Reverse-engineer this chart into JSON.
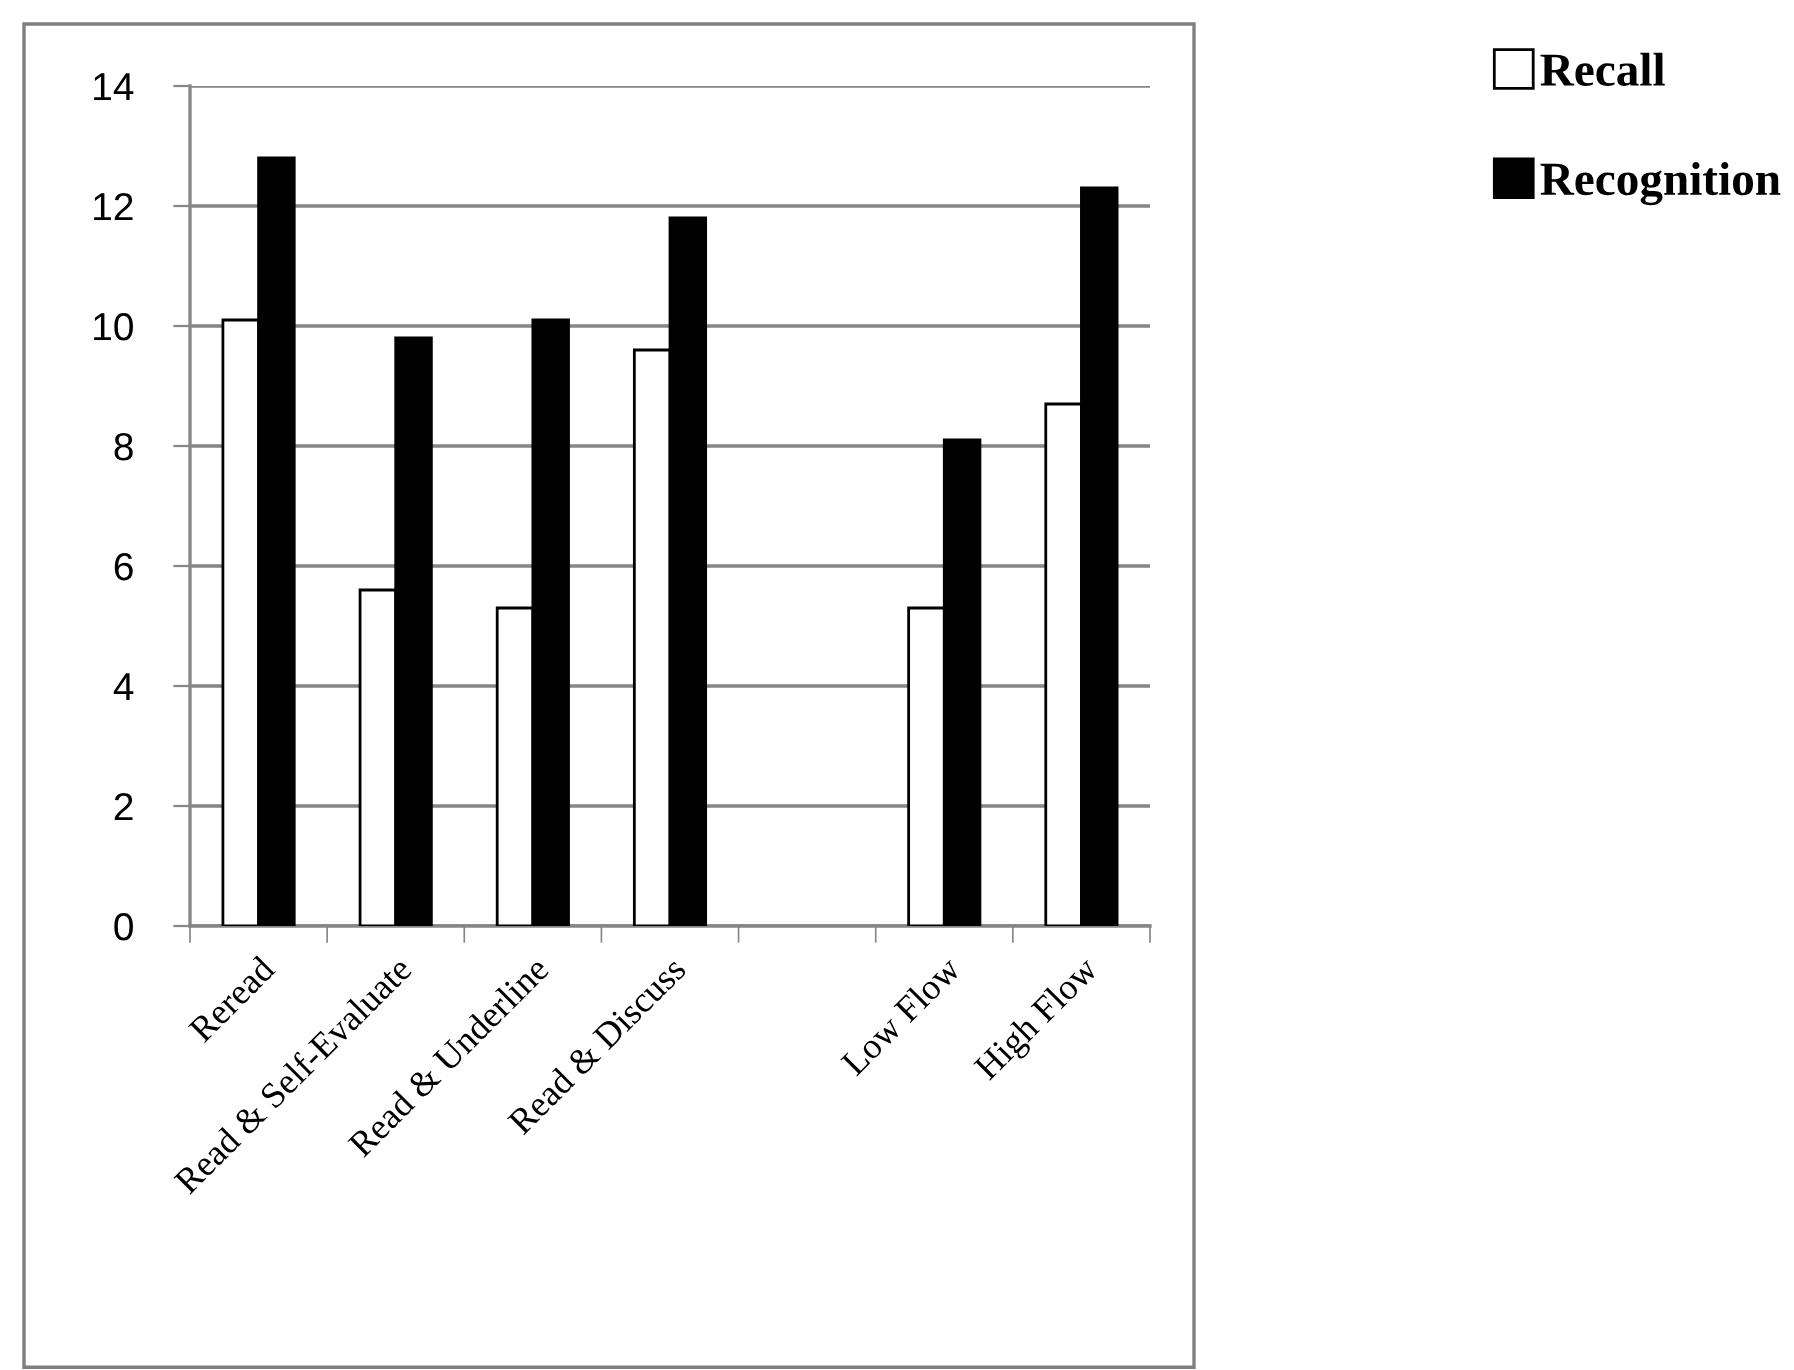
{
  "chart_data": {
    "type": "bar",
    "categories": [
      "Reread",
      "Read & Self-Evaluate",
      "Read & Underline",
      "Read & Discuss",
      null,
      "Low Flow",
      "High Flow"
    ],
    "series": [
      {
        "name": "Recall",
        "color": "#ffffff",
        "values": [
          10.1,
          5.6,
          5.3,
          9.6,
          null,
          5.3,
          8.7
        ]
      },
      {
        "name": "Recognition",
        "color": "#000000",
        "values": [
          12.8,
          9.8,
          10.1,
          11.8,
          null,
          8.1,
          12.3
        ]
      }
    ],
    "ylim": [
      0,
      14
    ],
    "yticks": [
      0,
      2,
      4,
      6,
      8,
      10,
      12,
      14
    ],
    "grid": "y",
    "legend": "top right"
  }
}
